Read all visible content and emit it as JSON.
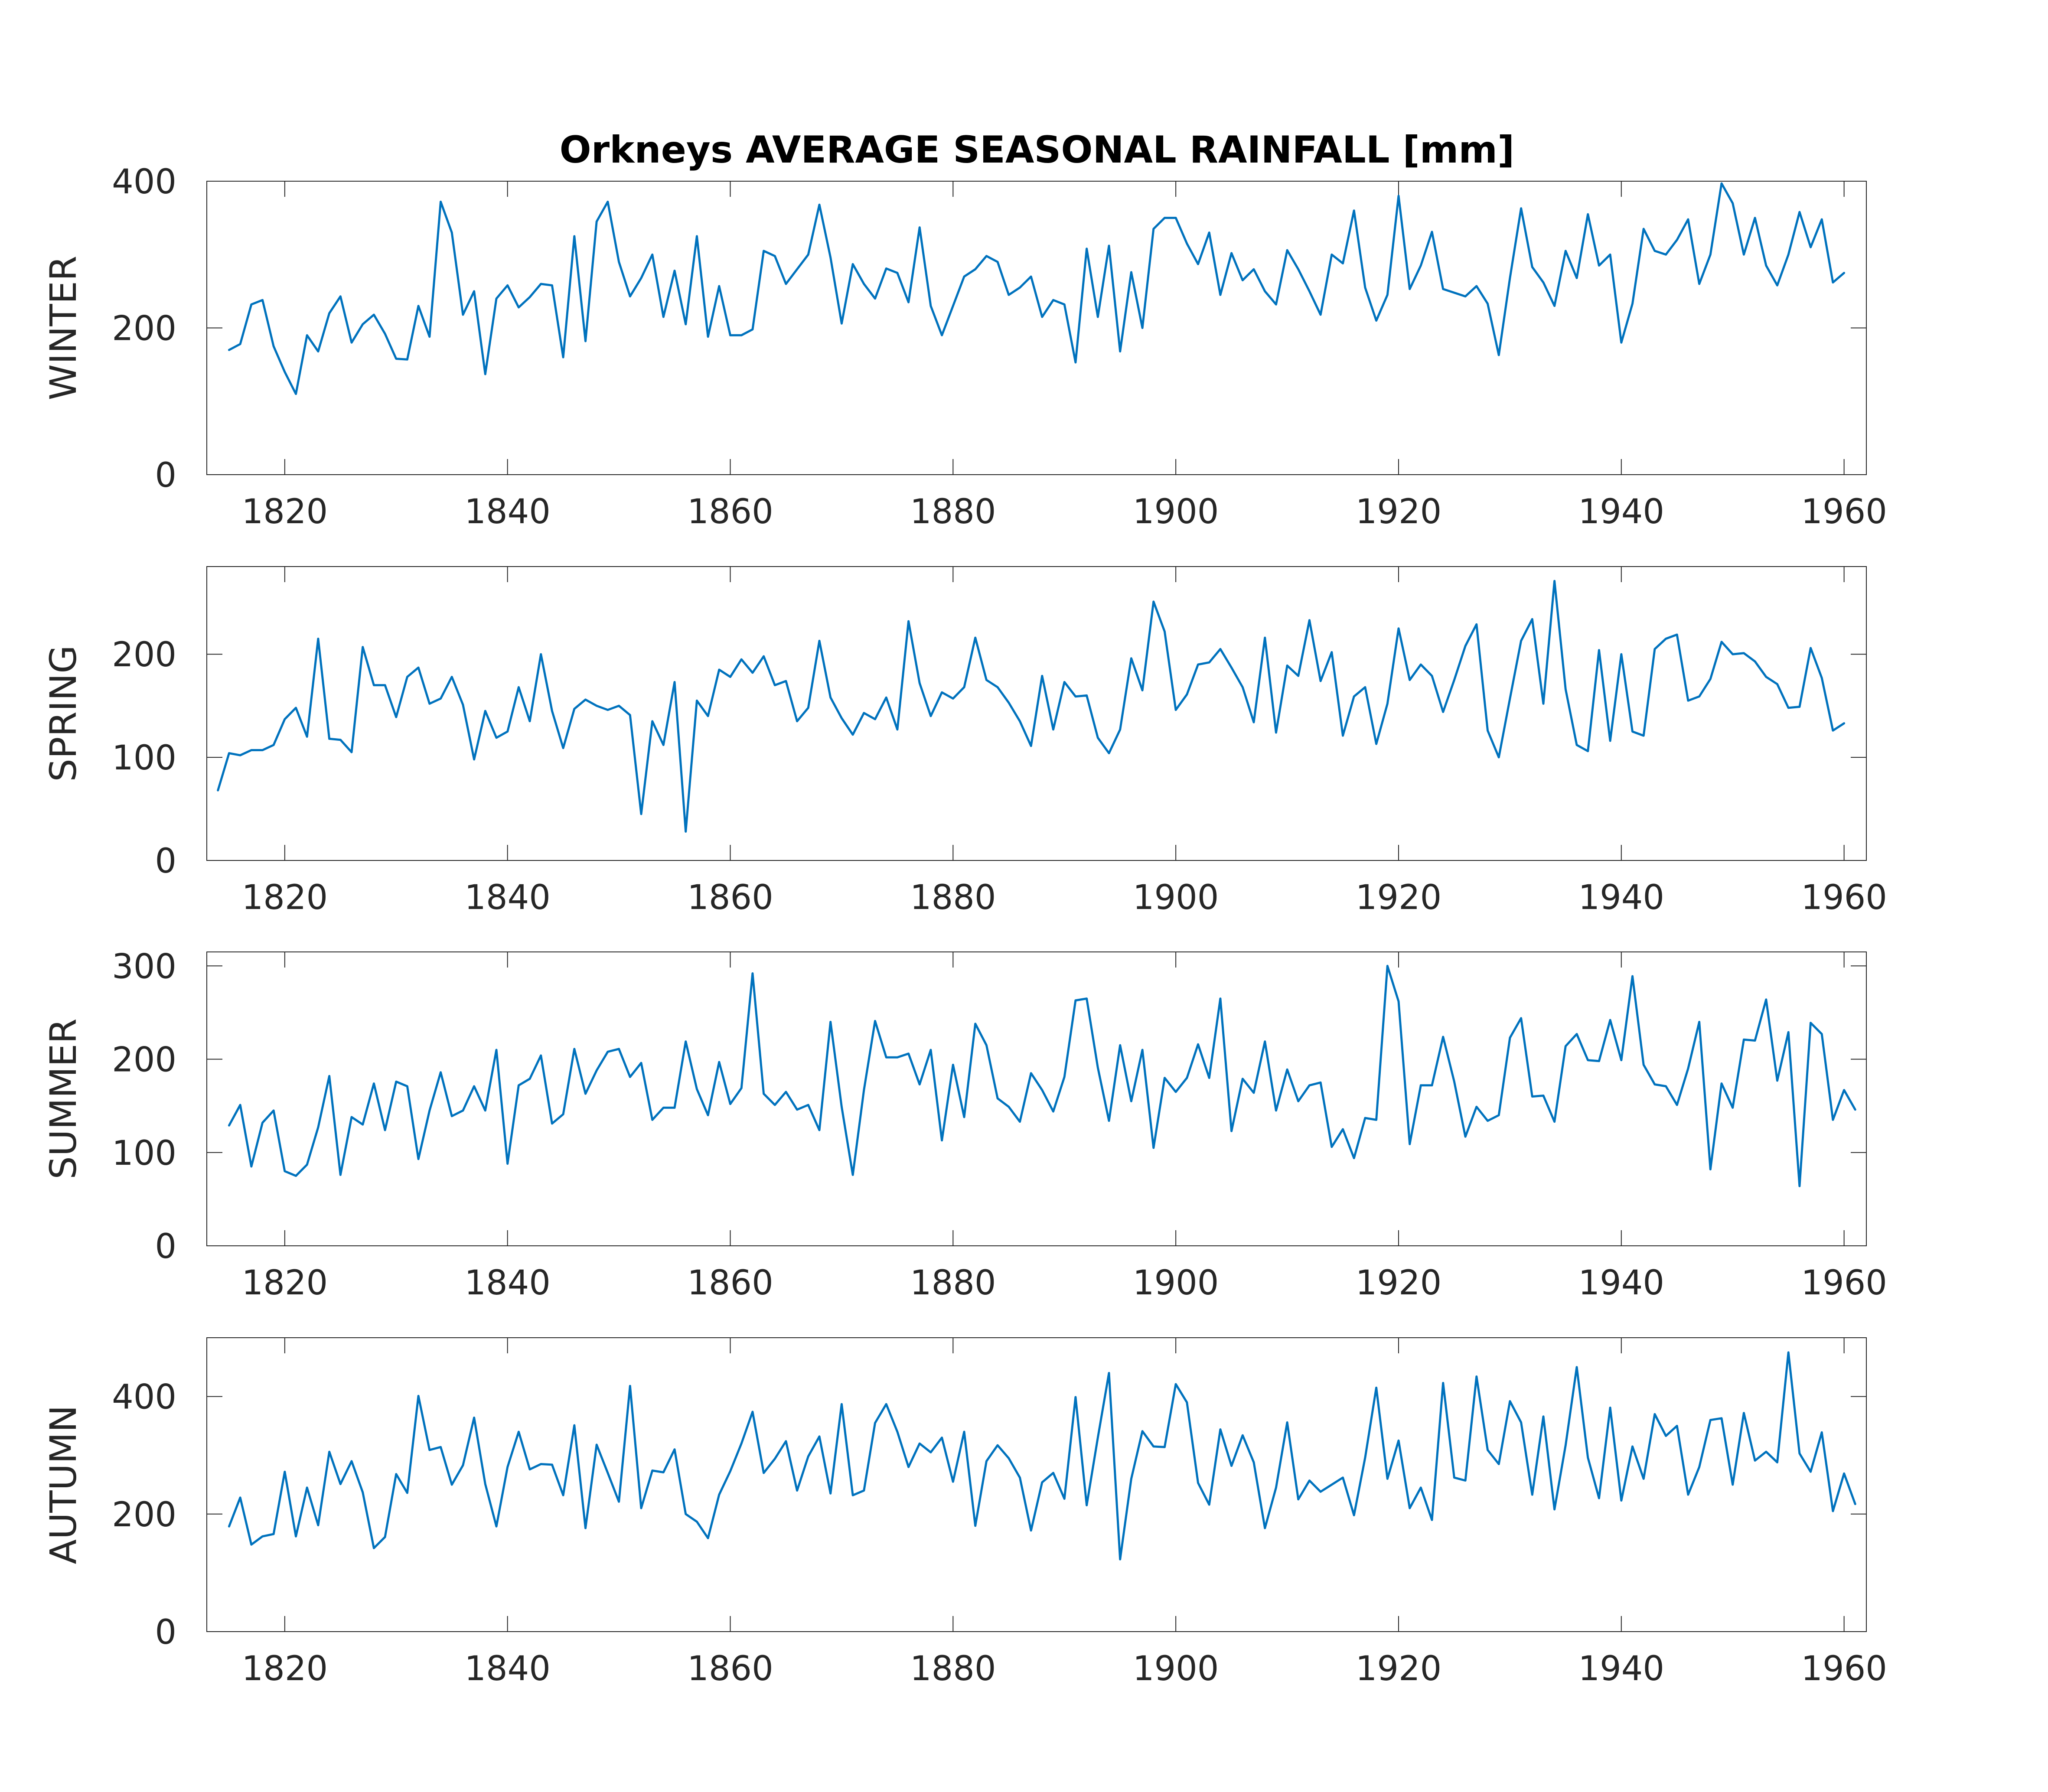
{
  "figure": {
    "title": "Orkneys AVERAGE SEASONAL RAINFALL [mm]",
    "line_color": "#0072BD"
  },
  "chart_data": [
    {
      "type": "line",
      "ylabel": "WINTER",
      "xlim": [
        1813,
        1962
      ],
      "ylim": [
        0,
        400
      ],
      "xticks": [
        1820,
        1840,
        1860,
        1880,
        1900,
        1920,
        1940,
        1960
      ],
      "yticks": [
        0,
        200,
        400
      ],
      "x_start": 1815,
      "values": [
        170,
        178,
        232,
        238,
        175,
        140,
        110,
        190,
        168,
        220,
        243,
        180,
        205,
        218,
        192,
        158,
        157,
        230,
        188,
        372,
        330,
        218,
        250,
        137,
        240,
        258,
        228,
        242,
        260,
        258,
        160,
        325,
        182,
        345,
        372,
        290,
        243,
        268,
        300,
        215,
        278,
        205,
        325,
        188,
        257,
        190,
        190,
        198,
        305,
        298,
        260,
        280,
        300,
        368,
        296,
        206,
        287,
        260,
        240,
        281,
        275,
        235,
        337,
        230,
        190,
        230,
        270,
        280,
        298,
        290,
        245,
        255,
        270,
        215,
        238,
        232,
        153,
        308,
        215,
        312,
        168,
        276,
        200,
        335,
        350,
        350,
        315,
        287,
        330,
        245,
        302,
        265,
        280,
        250,
        232,
        306,
        280,
        250,
        218,
        300,
        288,
        360,
        255,
        210,
        245,
        380,
        253,
        285,
        331,
        253,
        248,
        243,
        257,
        233,
        163,
        268,
        363,
        283,
        262,
        230,
        305,
        268,
        355,
        285,
        300,
        180,
        233,
        335,
        305,
        300,
        320,
        348,
        260,
        300,
        397,
        370,
        300,
        350,
        285,
        258,
        300,
        358,
        310,
        348,
        262,
        275
      ]
    },
    {
      "type": "line",
      "ylabel": "SPRING",
      "xlim": [
        1813,
        1962
      ],
      "ylim": [
        0,
        285
      ],
      "xticks": [
        1820,
        1840,
        1860,
        1880,
        1900,
        1920,
        1940,
        1960
      ],
      "yticks": [
        0,
        100,
        200
      ],
      "x_start": 1814,
      "values": [
        68,
        104,
        102,
        107,
        107,
        112,
        137,
        148,
        120,
        215,
        118,
        117,
        105,
        207,
        170,
        170,
        139,
        178,
        187,
        152,
        157,
        178,
        151,
        98,
        145,
        119,
        125,
        168,
        135,
        200,
        145,
        109,
        147,
        156,
        150,
        146,
        150,
        141,
        45,
        135,
        112,
        173,
        28,
        155,
        140,
        185,
        178,
        195,
        182,
        198,
        170,
        174,
        135,
        148,
        213,
        158,
        138,
        122,
        143,
        137,
        158,
        127,
        232,
        172,
        140,
        163,
        157,
        168,
        216,
        175,
        168,
        153,
        135,
        111,
        179,
        127,
        173,
        159,
        160,
        119,
        104,
        127,
        196,
        165,
        251,
        222,
        146,
        161,
        190,
        192,
        205,
        187,
        168,
        134,
        216,
        124,
        189,
        179,
        233,
        174,
        202,
        121,
        159,
        168,
        113,
        152,
        225,
        175,
        190,
        179,
        144,
        175,
        208,
        229,
        126,
        100,
        157,
        213,
        234,
        152,
        271,
        166,
        112,
        106,
        204,
        116,
        200,
        125,
        121,
        205,
        215,
        219,
        155,
        159,
        176,
        212,
        200,
        201,
        193,
        178,
        171,
        148,
        149,
        206,
        177,
        126,
        133
      ]
    },
    {
      "type": "line",
      "ylabel": "SUMMER",
      "xlim": [
        1813,
        1962
      ],
      "ylim": [
        0,
        315
      ],
      "xticks": [
        1820,
        1840,
        1860,
        1880,
        1900,
        1920,
        1940,
        1960
      ],
      "yticks": [
        0,
        100,
        200,
        300
      ],
      "x_start": 1815,
      "values": [
        129,
        151,
        85,
        132,
        145,
        80,
        75,
        87,
        127,
        182,
        76,
        138,
        130,
        174,
        124,
        176,
        171,
        93,
        145,
        186,
        139,
        145,
        171,
        145,
        210,
        88,
        172,
        179,
        204,
        131,
        141,
        211,
        163,
        188,
        208,
        211,
        181,
        196,
        135,
        148,
        148,
        219,
        168,
        140,
        197,
        152,
        169,
        292,
        163,
        151,
        165,
        146,
        151,
        124,
        240,
        149,
        76,
        167,
        241,
        202,
        202,
        206,
        173,
        210,
        113,
        194,
        138,
        238,
        215,
        158,
        149,
        133,
        185,
        167,
        144,
        181,
        263,
        265,
        191,
        134,
        215,
        155,
        210,
        105,
        180,
        165,
        180,
        216,
        180,
        265,
        123,
        179,
        164,
        219,
        145,
        189,
        155,
        172,
        175,
        106,
        125,
        94,
        137,
        135,
        300,
        262,
        109,
        172,
        172,
        224,
        176,
        117,
        149,
        134,
        140,
        223,
        244,
        160,
        161,
        133,
        214,
        227,
        199,
        198,
        242,
        199,
        289,
        194,
        173,
        171,
        151,
        190,
        240,
        82,
        174,
        148,
        221,
        220,
        264,
        177,
        229,
        64,
        239,
        227,
        135,
        167,
        146
      ]
    },
    {
      "type": "line",
      "ylabel": "AUTUMN",
      "xlim": [
        1813,
        1962
      ],
      "ylim": [
        0,
        500
      ],
      "xticks": [
        1820,
        1840,
        1860,
        1880,
        1900,
        1920,
        1940,
        1960
      ],
      "yticks": [
        0,
        200,
        400
      ],
      "x_start": 1815,
      "values": [
        179,
        228,
        148,
        162,
        166,
        272,
        162,
        245,
        181,
        306,
        251,
        290,
        237,
        142,
        161,
        268,
        236,
        401,
        309,
        314,
        250,
        283,
        364,
        251,
        179,
        280,
        340,
        276,
        285,
        284,
        232,
        351,
        176,
        318,
        270,
        221,
        418,
        210,
        274,
        271,
        310,
        200,
        187,
        159,
        233,
        273,
        320,
        374,
        270,
        294,
        324,
        240,
        298,
        332,
        235,
        387,
        232,
        240,
        355,
        387,
        340,
        280,
        320,
        305,
        330,
        255,
        340,
        180,
        290,
        317,
        295,
        262,
        172,
        254,
        270,
        226,
        399,
        215,
        330,
        440,
        123,
        260,
        341,
        315,
        314,
        421,
        390,
        253,
        216,
        344,
        282,
        334,
        288,
        176,
        245,
        356,
        225,
        257,
        238,
        250,
        262,
        198,
        296,
        415,
        260,
        325,
        210,
        245,
        190,
        423,
        262,
        257,
        434,
        309,
        285,
        392,
        356,
        233,
        366,
        208,
        317,
        450,
        296,
        227,
        381,
        223,
        315,
        260,
        370,
        333,
        350,
        233,
        280,
        360,
        363,
        250,
        372,
        291,
        306,
        288,
        475,
        303,
        272,
        339,
        205,
        269,
        217
      ]
    }
  ]
}
